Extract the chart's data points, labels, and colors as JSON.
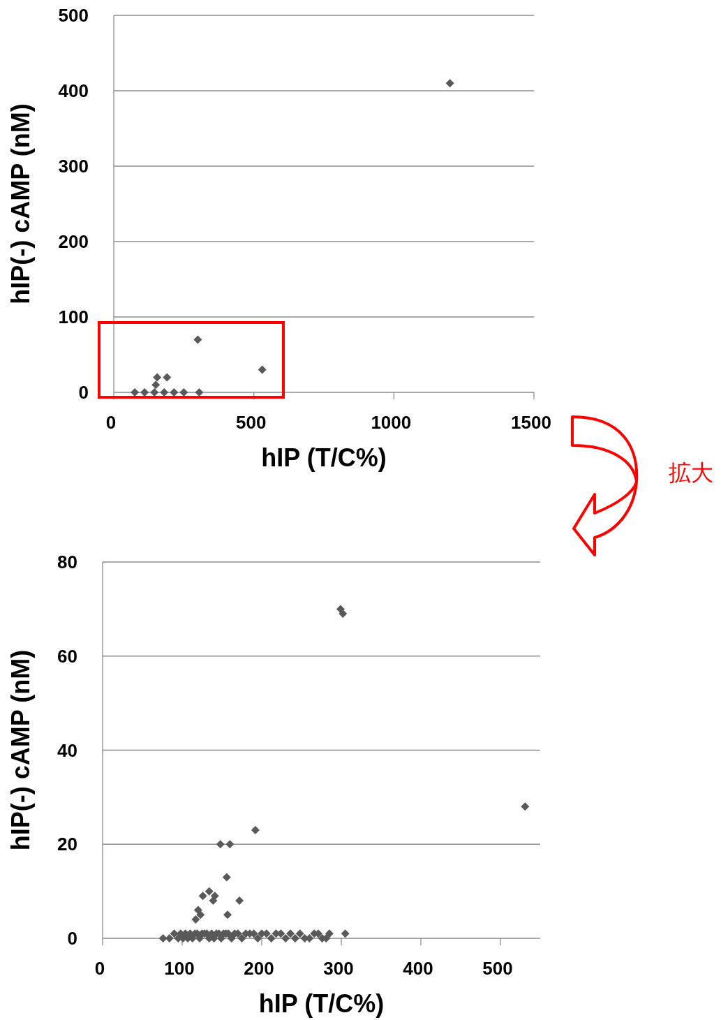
{
  "chart_data": [
    {
      "type": "scatter",
      "xlabel": "hIP (T/C%)",
      "ylabel": "hIP(-) cAMP (nM)",
      "color": "#595959",
      "marker": "diamond",
      "grid": "y",
      "xlim": [
        0,
        1500
      ],
      "ylim": [
        0,
        500
      ],
      "xticks": [
        0,
        500,
        1000,
        1500
      ],
      "yticks": [
        0,
        100,
        200,
        300,
        400,
        500
      ],
      "annotations": [
        "拡大"
      ],
      "x": [
        1200,
        300,
        530,
        190,
        155,
        150,
        305,
        75,
        110,
        145,
        180,
        215,
        250
      ],
      "values": [
        410,
        70,
        30,
        20,
        20,
        10,
        0,
        0,
        0,
        0,
        0,
        0,
        0
      ]
    },
    {
      "type": "scatter",
      "xlabel": "hIP (T/C%)",
      "ylabel": "hIP(-) cAMP (nM)",
      "color": "#595959",
      "marker": "diamond",
      "grid": "y",
      "xlim": [
        0,
        550
      ],
      "ylim": [
        0,
        80
      ],
      "xticks": [
        0,
        100,
        200,
        300,
        400,
        500
      ],
      "yticks": [
        0,
        20,
        40,
        60,
        80
      ],
      "x": [
        299,
        302,
        531,
        192,
        148,
        160,
        156,
        134,
        141,
        139,
        126,
        172,
        120,
        123,
        117,
        157,
        305,
        76,
        84,
        90,
        95,
        98,
        101,
        104,
        107,
        110,
        113,
        116,
        119,
        122,
        125,
        128,
        131,
        134,
        137,
        140,
        143,
        146,
        149,
        152,
        155,
        158,
        162,
        166,
        170,
        175,
        180,
        185,
        190,
        195,
        200,
        206,
        212,
        218,
        224,
        230,
        236,
        242,
        248,
        254,
        260,
        266,
        271,
        276,
        281,
        285
      ],
      "values": [
        70,
        69,
        28,
        23,
        20,
        20,
        13,
        10,
        9,
        8,
        9,
        8,
        6,
        5,
        4,
        5,
        1,
        0,
        0,
        1,
        0,
        1,
        0,
        1,
        0,
        1,
        0,
        1,
        1,
        0,
        1,
        1,
        1,
        0,
        1,
        0,
        1,
        1,
        0,
        1,
        1,
        1,
        0,
        1,
        1,
        0,
        1,
        1,
        1,
        0,
        1,
        1,
        0,
        1,
        1,
        0,
        1,
        0,
        1,
        0,
        0,
        1,
        1,
        0,
        0,
        1
      ]
    }
  ]
}
